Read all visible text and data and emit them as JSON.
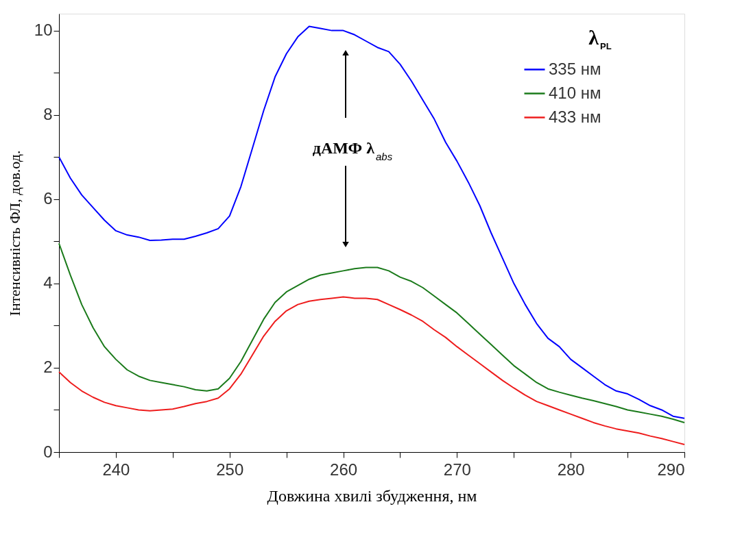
{
  "chart_data": {
    "type": "line",
    "xlabel": "Довжина хвилі збудження, нм",
    "ylabel": "Інтенсивність ФЛ, дов.од.",
    "legend_title": "λ$_{PL}$",
    "legend": "top right",
    "grid": false,
    "marker": "none",
    "line_style": "solid",
    "xlim": [
      235,
      290
    ],
    "ylim": [
      0,
      10.4
    ],
    "xticks": [
      {
        "value": 235,
        "label": null
      },
      240,
      {
        "value": 245,
        "label": null
      },
      250,
      {
        "value": 255,
        "label": null
      },
      260,
      {
        "value": 265,
        "label": null
      },
      270,
      {
        "value": 275,
        "label": null
      },
      280,
      {
        "value": 285,
        "label": null
      },
      290
    ],
    "yticks": [
      0,
      {
        "value": 1,
        "label": null
      },
      2,
      {
        "value": 3,
        "label": null
      },
      4,
      {
        "value": 5,
        "label": null
      },
      6,
      {
        "value": 7,
        "label": null
      },
      8,
      {
        "value": 9,
        "label": null
      },
      10
    ],
    "annotations": [
      "дАМФ λ$_{abs}$"
    ],
    "x": [
      235,
      236,
      237,
      238,
      239,
      240,
      241,
      242,
      243,
      244,
      245,
      246,
      247,
      248,
      249,
      250,
      251,
      252,
      253,
      254,
      255,
      256,
      257,
      258,
      259,
      260,
      261,
      262,
      263,
      264,
      265,
      266,
      267,
      268,
      269,
      270,
      271,
      272,
      273,
      274,
      275,
      276,
      277,
      278,
      279,
      280,
      281,
      282,
      283,
      284,
      285,
      286,
      287,
      288,
      289,
      290
    ],
    "series": [
      {
        "name": "335 нм",
        "color": "#0000ff",
        "values": [
          7.0,
          6.5,
          6.1,
          5.8,
          5.5,
          5.25,
          5.15,
          5.1,
          5.02,
          5.03,
          5.05,
          5.05,
          5.12,
          5.2,
          5.3,
          5.6,
          6.3,
          7.2,
          8.1,
          8.9,
          9.45,
          9.85,
          10.1,
          10.05,
          10.0,
          10.0,
          9.9,
          9.75,
          9.6,
          9.5,
          9.2,
          8.8,
          8.35,
          7.9,
          7.35,
          6.9,
          6.4,
          5.85,
          5.2,
          4.6,
          4.0,
          3.5,
          3.05,
          2.7,
          2.5,
          2.2,
          2.0,
          1.8,
          1.6,
          1.45,
          1.38,
          1.25,
          1.1,
          1.0,
          0.85,
          0.8
        ]
      },
      {
        "name": "410 нм",
        "color": "#1a7a1a",
        "values": [
          4.95,
          4.2,
          3.5,
          2.95,
          2.5,
          2.2,
          1.95,
          1.8,
          1.7,
          1.65,
          1.6,
          1.55,
          1.48,
          1.45,
          1.5,
          1.75,
          2.15,
          2.65,
          3.15,
          3.55,
          3.8,
          3.95,
          4.1,
          4.2,
          4.25,
          4.3,
          4.35,
          4.38,
          4.38,
          4.3,
          4.15,
          4.05,
          3.9,
          3.7,
          3.5,
          3.3,
          3.05,
          2.8,
          2.55,
          2.3,
          2.05,
          1.85,
          1.65,
          1.5,
          1.42,
          1.35,
          1.28,
          1.22,
          1.15,
          1.08,
          1.0,
          0.95,
          0.9,
          0.85,
          0.78,
          0.7
        ]
      },
      {
        "name": "433 нм",
        "color": "#ee1c1c",
        "values": [
          1.9,
          1.65,
          1.45,
          1.3,
          1.18,
          1.1,
          1.05,
          1.0,
          0.98,
          1.0,
          1.02,
          1.08,
          1.15,
          1.2,
          1.28,
          1.5,
          1.85,
          2.3,
          2.75,
          3.1,
          3.35,
          3.5,
          3.58,
          3.62,
          3.65,
          3.68,
          3.65,
          3.65,
          3.62,
          3.5,
          3.38,
          3.25,
          3.1,
          2.9,
          2.72,
          2.5,
          2.3,
          2.1,
          1.9,
          1.7,
          1.52,
          1.35,
          1.2,
          1.1,
          1.0,
          0.9,
          0.8,
          0.7,
          0.62,
          0.55,
          0.5,
          0.45,
          0.38,
          0.32,
          0.25,
          0.18
        ]
      }
    ]
  }
}
